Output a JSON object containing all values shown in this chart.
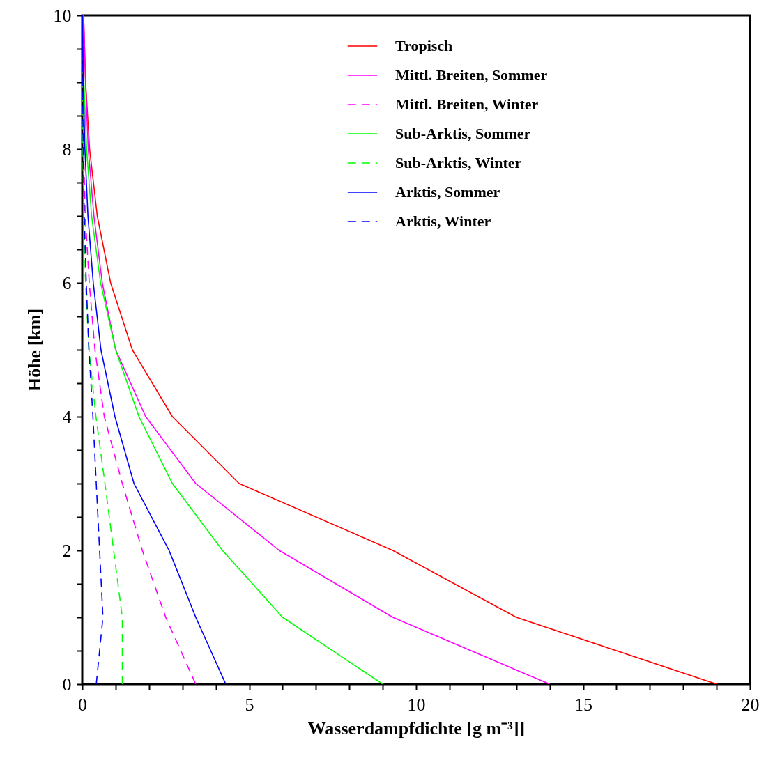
{
  "chart_data": {
    "type": "line",
    "xlabel": "Wasserdampfdichte [g m⁻³]]",
    "ylabel": "Höhe [km]",
    "xlim": [
      0,
      20
    ],
    "ylim": [
      0,
      10
    ],
    "xticks": [
      0,
      {
        "value": 1,
        "label": null
      },
      {
        "value": 2,
        "label": null
      },
      {
        "value": 3,
        "label": null
      },
      {
        "value": 4,
        "label": null
      },
      5,
      {
        "value": 6,
        "label": null
      },
      {
        "value": 7,
        "label": null
      },
      {
        "value": 8,
        "label": null
      },
      {
        "value": 9,
        "label": null
      },
      10,
      {
        "value": 11,
        "label": null
      },
      {
        "value": 12,
        "label": null
      },
      {
        "value": 13,
        "label": null
      },
      {
        "value": 14,
        "label": null
      },
      15,
      {
        "value": 16,
        "label": null
      },
      {
        "value": 17,
        "label": null
      },
      {
        "value": 18,
        "label": null
      },
      {
        "value": 19,
        "label": null
      },
      20
    ],
    "yticks": [
      0,
      {
        "value": 0.5,
        "label": null
      },
      {
        "value": 1,
        "label": null
      },
      {
        "value": 1.5,
        "label": null
      },
      2,
      {
        "value": 2.5,
        "label": null
      },
      {
        "value": 3,
        "label": null
      },
      {
        "value": 3.5,
        "label": null
      },
      4,
      {
        "value": 4.5,
        "label": null
      },
      {
        "value": 5,
        "label": null
      },
      {
        "value": 5.5,
        "label": null
      },
      6,
      {
        "value": 6.5,
        "label": null
      },
      {
        "value": 7,
        "label": null
      },
      {
        "value": 7.5,
        "label": null
      },
      8,
      {
        "value": 8.5,
        "label": null
      },
      {
        "value": 9,
        "label": null
      },
      {
        "value": 9.5,
        "label": null
      },
      10
    ],
    "grid": false,
    "legend": "top right",
    "marker": "none",
    "series": [
      {
        "name": "Tropisch",
        "color": "#ff0000",
        "line_style": "solid",
        "x": [
          19,
          13,
          9.3,
          4.7,
          2.7,
          1.5,
          0.85,
          0.45,
          0.22,
          0.1,
          0.04
        ],
        "values": [
          0,
          1,
          2,
          3,
          4,
          5,
          6,
          7,
          8,
          9,
          10
        ]
      },
      {
        "name": "Mittl. Breiten, Sommer",
        "color": "#ff00ff",
        "line_style": "solid",
        "x": [
          14,
          9.3,
          5.9,
          3.4,
          1.9,
          1.0,
          0.6,
          0.35,
          0.18,
          0.1,
          0.04
        ],
        "values": [
          0,
          1,
          2,
          3,
          4,
          5,
          6,
          7,
          8,
          9,
          10
        ]
      },
      {
        "name": "Mittl. Breiten, Winter",
        "color": "#ff00ff",
        "line_style": "dashed",
        "x": [
          3.4,
          2.5,
          1.8,
          1.2,
          0.66,
          0.38,
          0.21,
          0.09,
          0.04,
          0.02,
          0.01
        ],
        "values": [
          0,
          1,
          2,
          3,
          4,
          5,
          6,
          7,
          8,
          9,
          10
        ]
      },
      {
        "name": "Sub-Arktis, Sommer",
        "color": "#00ff00",
        "line_style": "solid",
        "x": [
          9.0,
          6.0,
          4.2,
          2.7,
          1.7,
          1.0,
          0.55,
          0.28,
          0.13,
          0.05,
          0.02
        ],
        "values": [
          0,
          1,
          2,
          3,
          4,
          5,
          6,
          7,
          8,
          9,
          10
        ]
      },
      {
        "name": "Sub-Arktis, Winter",
        "color": "#00ff00",
        "line_style": "dashed",
        "x": [
          1.2,
          1.2,
          0.94,
          0.68,
          0.41,
          0.2,
          0.1,
          0.05,
          0.02,
          0.01,
          0.005
        ],
        "values": [
          0,
          1,
          2,
          3,
          4,
          5,
          6,
          7,
          8,
          9,
          10
        ]
      },
      {
        "name": "Arktis, Sommer",
        "color": "#0000ff",
        "line_style": "solid",
        "x": [
          4.3,
          3.4,
          2.6,
          1.55,
          0.98,
          0.56,
          0.33,
          0.17,
          0.08,
          0.03,
          0.01
        ],
        "values": [
          0,
          1,
          2,
          3,
          4,
          5,
          6,
          7,
          8,
          9,
          10
        ]
      },
      {
        "name": "Arktis, Winter",
        "color": "#0000ff",
        "line_style": "dashed",
        "x": [
          0.42,
          0.62,
          0.52,
          0.42,
          0.32,
          0.2,
          0.12,
          0.06,
          0.03,
          0.01,
          0.005
        ],
        "values": [
          0,
          1,
          2,
          3,
          4,
          5,
          6,
          7,
          8,
          9,
          10
        ]
      }
    ]
  }
}
